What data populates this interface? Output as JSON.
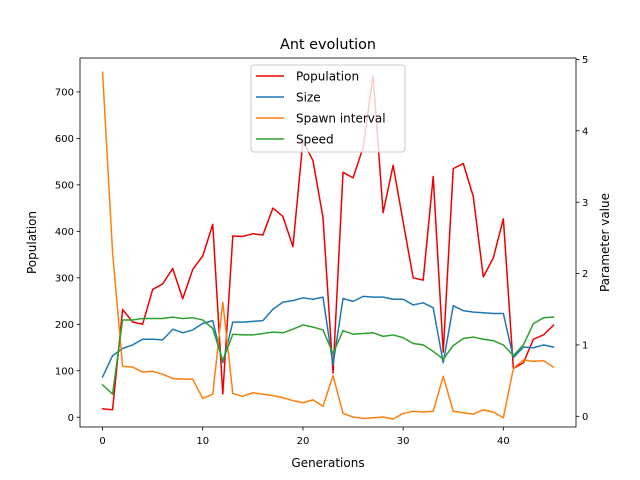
{
  "chart_data": {
    "type": "line",
    "title": "Ant evolution",
    "xlabel": "Generations",
    "ylabel": "Population",
    "y2label": "Parameter value",
    "xlim": [
      -2.25,
      47.25
    ],
    "ylim": [
      -21,
      773
    ],
    "y2lim": [
      -0.15,
      5.02
    ],
    "xticks": [
      0,
      10,
      20,
      30,
      40
    ],
    "yticks": [
      0,
      100,
      200,
      300,
      400,
      500,
      600,
      700
    ],
    "y2ticks": [
      0,
      1,
      2,
      3,
      4,
      5
    ],
    "legend": "upper-center",
    "grid": false,
    "x": [
      0,
      1,
      2,
      3,
      4,
      5,
      6,
      7,
      8,
      9,
      10,
      11,
      12,
      13,
      14,
      15,
      16,
      17,
      18,
      19,
      20,
      21,
      22,
      23,
      24,
      25,
      26,
      27,
      28,
      29,
      30,
      31,
      32,
      33,
      34,
      35,
      36,
      37,
      38,
      39,
      40,
      41,
      42,
      43,
      44,
      45
    ],
    "series": [
      {
        "name": "Population",
        "axis": "left",
        "color": "#ee0000",
        "values": [
          18,
          16,
          232,
          205,
          200,
          275,
          287,
          320,
          255,
          318,
          347,
          415,
          50,
          390,
          389,
          395,
          392,
          450,
          432,
          367,
          595,
          552,
          430,
          95,
          527,
          515,
          580,
          735,
          440,
          542,
          420,
          300,
          295,
          518,
          140,
          535,
          546,
          475,
          302,
          343,
          427,
          105,
          117,
          168,
          177,
          198
        ]
      },
      {
        "name": "Size",
        "axis": "right",
        "color": "#1f77b4",
        "values": [
          0.55,
          0.85,
          0.95,
          1.0,
          1.08,
          1.08,
          1.07,
          1.22,
          1.17,
          1.21,
          1.3,
          1.34,
          0.75,
          1.32,
          1.32,
          1.33,
          1.34,
          1.5,
          1.6,
          1.62,
          1.66,
          1.64,
          1.67,
          0.72,
          1.65,
          1.61,
          1.68,
          1.67,
          1.67,
          1.64,
          1.64,
          1.56,
          1.59,
          1.52,
          0.75,
          1.55,
          1.48,
          1.46,
          1.45,
          1.44,
          1.44,
          0.82,
          0.97,
          0.96,
          1.0,
          0.97
        ]
      },
      {
        "name": "Spawn interval",
        "axis": "right",
        "color": "#ff7f0e",
        "values": [
          4.82,
          2.3,
          0.7,
          0.69,
          0.62,
          0.63,
          0.59,
          0.53,
          0.52,
          0.52,
          0.25,
          0.31,
          1.6,
          0.32,
          0.28,
          0.33,
          0.31,
          0.29,
          0.26,
          0.22,
          0.19,
          0.23,
          0.14,
          0.57,
          0.04,
          -0.01,
          -0.03,
          -0.02,
          -0.01,
          -0.04,
          0.04,
          0.07,
          0.06,
          0.07,
          0.56,
          0.07,
          0.05,
          0.03,
          0.09,
          0.06,
          -0.02,
          0.67,
          0.79,
          0.77,
          0.78,
          0.69
        ]
      },
      {
        "name": "Speed",
        "axis": "right",
        "color": "#2ca02c",
        "values": [
          0.44,
          0.31,
          1.35,
          1.35,
          1.37,
          1.37,
          1.37,
          1.39,
          1.37,
          1.38,
          1.35,
          1.23,
          0.78,
          1.15,
          1.14,
          1.14,
          1.16,
          1.18,
          1.17,
          1.22,
          1.28,
          1.25,
          1.21,
          0.88,
          1.2,
          1.15,
          1.16,
          1.17,
          1.12,
          1.14,
          1.1,
          1.02,
          1.0,
          0.91,
          0.8,
          0.99,
          1.09,
          1.11,
          1.08,
          1.06,
          1.0,
          0.85,
          1.0,
          1.3,
          1.38,
          1.39
        ]
      }
    ]
  }
}
